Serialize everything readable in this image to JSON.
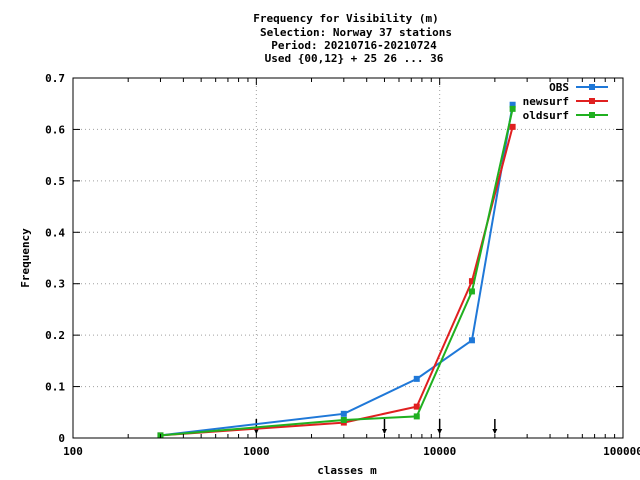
{
  "chart_data": {
    "type": "line",
    "title_lines": [
      "Frequency  for Visibility (m)",
      "Selection: Norway     37 stations",
      "Period: 20210716-20210724",
      "Used {00,12} + 25 26 ... 36"
    ],
    "xlabel": "classes m",
    "ylabel": "Frequency",
    "x_scale": "log",
    "xlim": [
      100,
      100000
    ],
    "ylim": [
      0,
      0.7
    ],
    "x_ticks": [
      100,
      1000,
      10000,
      100000
    ],
    "x_tick_labels": [
      "100",
      "1000",
      "10000",
      "100000"
    ],
    "y_ticks": [
      0,
      0.1,
      0.2,
      0.3,
      0.4,
      0.5,
      0.6,
      0.7
    ],
    "y_tick_labels": [
      "0",
      "0.1",
      "0.2",
      "0.3",
      "0.4",
      "0.5",
      "0.6",
      "0.7"
    ],
    "grid": true,
    "legend_position": "top-right",
    "class_limit_markers": [
      1000,
      5000,
      10000,
      20000
    ],
    "series": [
      {
        "name": "OBS",
        "color": "#1f78d8",
        "x": [
          300,
          3000,
          7500,
          15000,
          25000
        ],
        "y": [
          0.005,
          0.047,
          0.115,
          0.19,
          0.648
        ]
      },
      {
        "name": "newsurf",
        "color": "#e02020",
        "x": [
          300,
          3000,
          7500,
          15000,
          25000
        ],
        "y": [
          0.005,
          0.03,
          0.061,
          0.305,
          0.605
        ]
      },
      {
        "name": "oldsurf",
        "color": "#20b020",
        "x": [
          300,
          3000,
          7500,
          15000,
          25000
        ],
        "y": [
          0.005,
          0.035,
          0.042,
          0.285,
          0.64
        ]
      }
    ]
  }
}
